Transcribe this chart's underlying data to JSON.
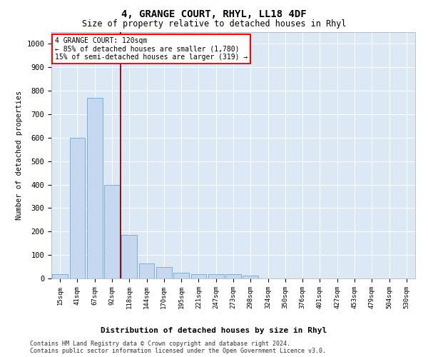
{
  "title": "4, GRANGE COURT, RHYL, LL18 4DF",
  "subtitle": "Size of property relative to detached houses in Rhyl",
  "xlabel": "Distribution of detached houses by size in Rhyl",
  "ylabel": "Number of detached properties",
  "categories": [
    "15sqm",
    "41sqm",
    "67sqm",
    "92sqm",
    "118sqm",
    "144sqm",
    "170sqm",
    "195sqm",
    "221sqm",
    "247sqm",
    "273sqm",
    "298sqm",
    "324sqm",
    "350sqm",
    "376sqm",
    "401sqm",
    "427sqm",
    "453sqm",
    "479sqm",
    "504sqm",
    "530sqm"
  ],
  "values": [
    18,
    600,
    770,
    400,
    185,
    65,
    50,
    25,
    18,
    18,
    18,
    12,
    0,
    0,
    0,
    0,
    0,
    0,
    0,
    0,
    0
  ],
  "bar_color": "#c5d8ef",
  "bar_edge_color": "#6fa8d0",
  "red_line_index": 4,
  "annotation_line1": "4 GRANGE COURT: 120sqm",
  "annotation_line2": "← 85% of detached houses are smaller (1,780)",
  "annotation_line3": "15% of semi-detached houses are larger (319) →",
  "ylim": [
    0,
    1050
  ],
  "yticks": [
    0,
    100,
    200,
    300,
    400,
    500,
    600,
    700,
    800,
    900,
    1000
  ],
  "footnote1": "Contains HM Land Registry data © Crown copyright and database right 2024.",
  "footnote2": "Contains public sector information licensed under the Open Government Licence v3.0.",
  "bg_color": "#dce9f5",
  "fig_bg": "#ffffff",
  "grid_color": "#ffffff"
}
